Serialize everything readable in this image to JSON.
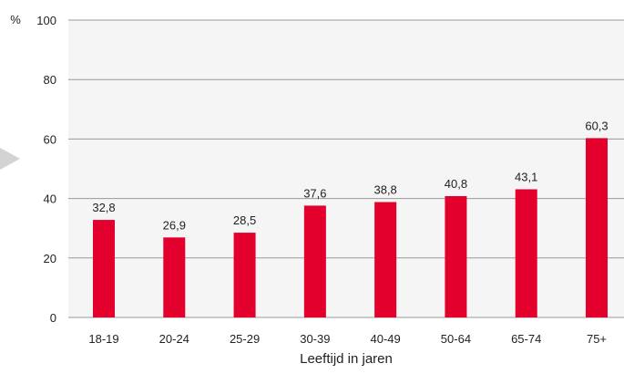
{
  "chart_data": {
    "type": "bar",
    "ylabel": "%",
    "xlabel": "Leeftijd in jaren",
    "categories": [
      "18-19",
      "20-24",
      "25-29",
      "30-39",
      "40-49",
      "50-64",
      "65-74",
      "75+"
    ],
    "values": [
      32.8,
      26.9,
      28.5,
      37.6,
      38.8,
      40.8,
      43.1,
      60.3
    ],
    "data_labels": [
      "32,8",
      "26,9",
      "28,5",
      "37,6",
      "38,8",
      "40,8",
      "43,1",
      "60,3"
    ],
    "ylim": [
      0,
      100
    ],
    "yticks": [
      0,
      20,
      40,
      60,
      80,
      100
    ],
    "grid": true,
    "colors": {
      "bar": "#e3002c",
      "plot_background": "#f5f5f5",
      "gridline": "#999999",
      "pointer_arrow": "#d3d3d3"
    }
  }
}
